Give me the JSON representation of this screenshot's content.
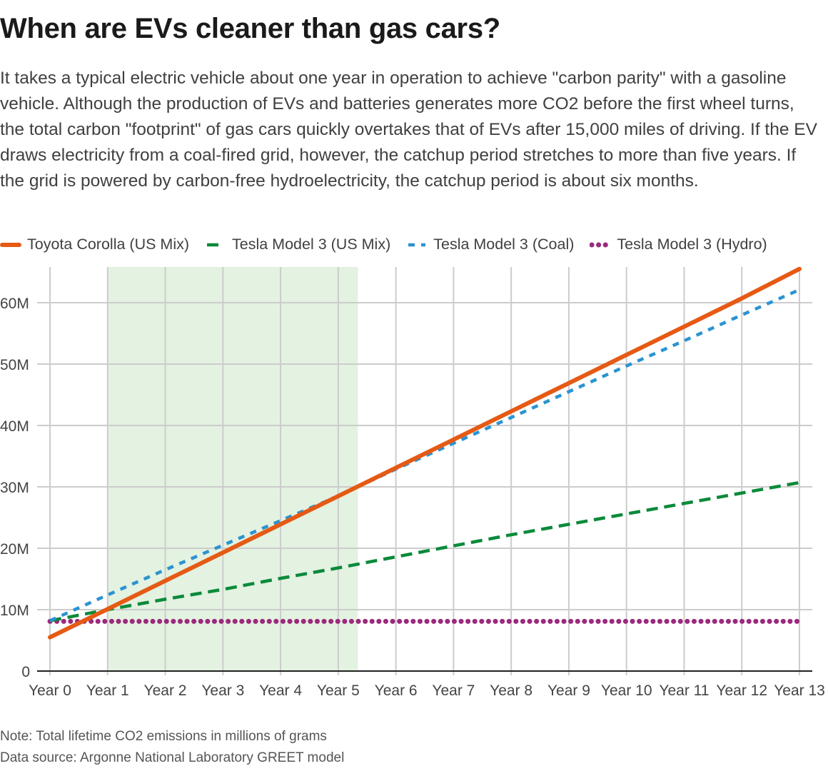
{
  "title": "When are EVs cleaner than gas cars?",
  "subtitle": "It takes a typical electric vehicle about one year in operation to achieve \"carbon parity\" with a gasoline vehicle. Although the production of EVs and batteries generates more CO2 before the first wheel turns, the total carbon \"footprint\" of gas cars quickly overtakes that of EVs after 15,000 miles of driving. If the EV draws electricity from a coal-fired grid, however, the catchup period stretches to more than five years. If the grid is powered by carbon-free hydroelectricity, the catchup period is about six months.",
  "note": "Note: Total lifetime CO2 emissions in millions of grams",
  "source": "Data source: Argonne National Laboratory GREET model",
  "chart_data": {
    "type": "line",
    "title": "When are EVs cleaner than gas cars?",
    "xlabel": "",
    "ylabel": "",
    "categories": [
      "Year 0",
      "Year 1",
      "Year 2",
      "Year 3",
      "Year 4",
      "Year 5",
      "Year 6",
      "Year 7",
      "Year 8",
      "Year 9",
      "Year 10",
      "Year 11",
      "Year 12",
      "Year 13"
    ],
    "y_ticks": [
      0,
      10,
      20,
      30,
      40,
      50,
      60
    ],
    "y_tick_labels": [
      "0",
      "10M",
      "20M",
      "30M",
      "40M",
      "50M",
      "60M"
    ],
    "ylim": [
      0,
      66
    ],
    "grid": true,
    "legend_position": "top",
    "shaded_region": {
      "x_start": 1,
      "x_end": 5.34,
      "color": "#e3f2e1"
    },
    "series": [
      {
        "name": "Toyota Corolla (US Mix)",
        "color": "#e55a14",
        "style": "solid",
        "values": [
          5.5,
          10.1,
          14.7,
          19.3,
          23.9,
          28.5,
          33.1,
          37.7,
          42.3,
          46.9,
          51.5,
          56.1,
          60.7,
          65.5
        ]
      },
      {
        "name": "Tesla Model 3 (US Mix)",
        "color": "#0a8a3a",
        "style": "dashed",
        "values": [
          8.2,
          10.0,
          11.7,
          13.3,
          15.1,
          16.8,
          18.6,
          20.4,
          22.2,
          23.9,
          25.6,
          27.3,
          29.0,
          30.7
        ]
      },
      {
        "name": "Tesla Model 3 (Coal)",
        "color": "#2b93d1",
        "style": "short-dashed",
        "values": [
          8.2,
          12.4,
          16.5,
          20.5,
          24.5,
          28.5,
          32.9,
          37.1,
          41.3,
          45.5,
          49.7,
          53.8,
          58.0,
          62.1
        ]
      },
      {
        "name": "Tesla Model 3 (Hydro)",
        "color": "#9b2a7d",
        "style": "dotted",
        "values": [
          8.1,
          8.1,
          8.1,
          8.1,
          8.1,
          8.1,
          8.1,
          8.1,
          8.1,
          8.1,
          8.1,
          8.1,
          8.1,
          8.1
        ]
      }
    ]
  }
}
